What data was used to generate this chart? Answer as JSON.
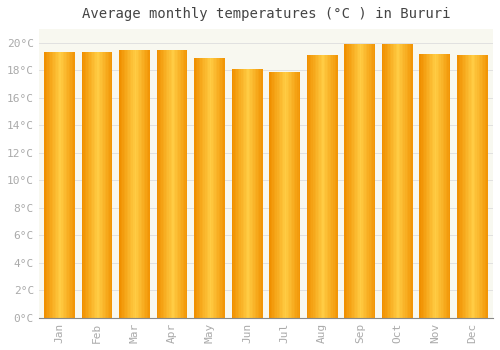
{
  "title": "Average monthly temperatures (°C ) in Bururi",
  "months": [
    "Jan",
    "Feb",
    "Mar",
    "Apr",
    "May",
    "Jun",
    "Jul",
    "Aug",
    "Sep",
    "Oct",
    "Nov",
    "Dec"
  ],
  "temperatures": [
    19.3,
    19.3,
    19.5,
    19.5,
    18.9,
    18.1,
    17.9,
    19.1,
    19.9,
    19.9,
    19.2,
    19.1
  ],
  "bar_color_left": "#FFB700",
  "bar_color_right": "#FF9800",
  "bar_color_center": "#FFC93A",
  "background_color": "#FFFFFF",
  "plot_bg_color": "#F8F8F0",
  "grid_color": "#DDDDDD",
  "ytick_labels": [
    "0°C",
    "2°C",
    "4°C",
    "6°C",
    "8°C",
    "10°C",
    "12°C",
    "14°C",
    "16°C",
    "18°C",
    "20°C"
  ],
  "ytick_values": [
    0,
    2,
    4,
    6,
    8,
    10,
    12,
    14,
    16,
    18,
    20
  ],
  "ylim": [
    0,
    21
  ],
  "title_fontsize": 10,
  "tick_fontsize": 8,
  "tick_color": "#AAAAAA",
  "font_family": "monospace"
}
